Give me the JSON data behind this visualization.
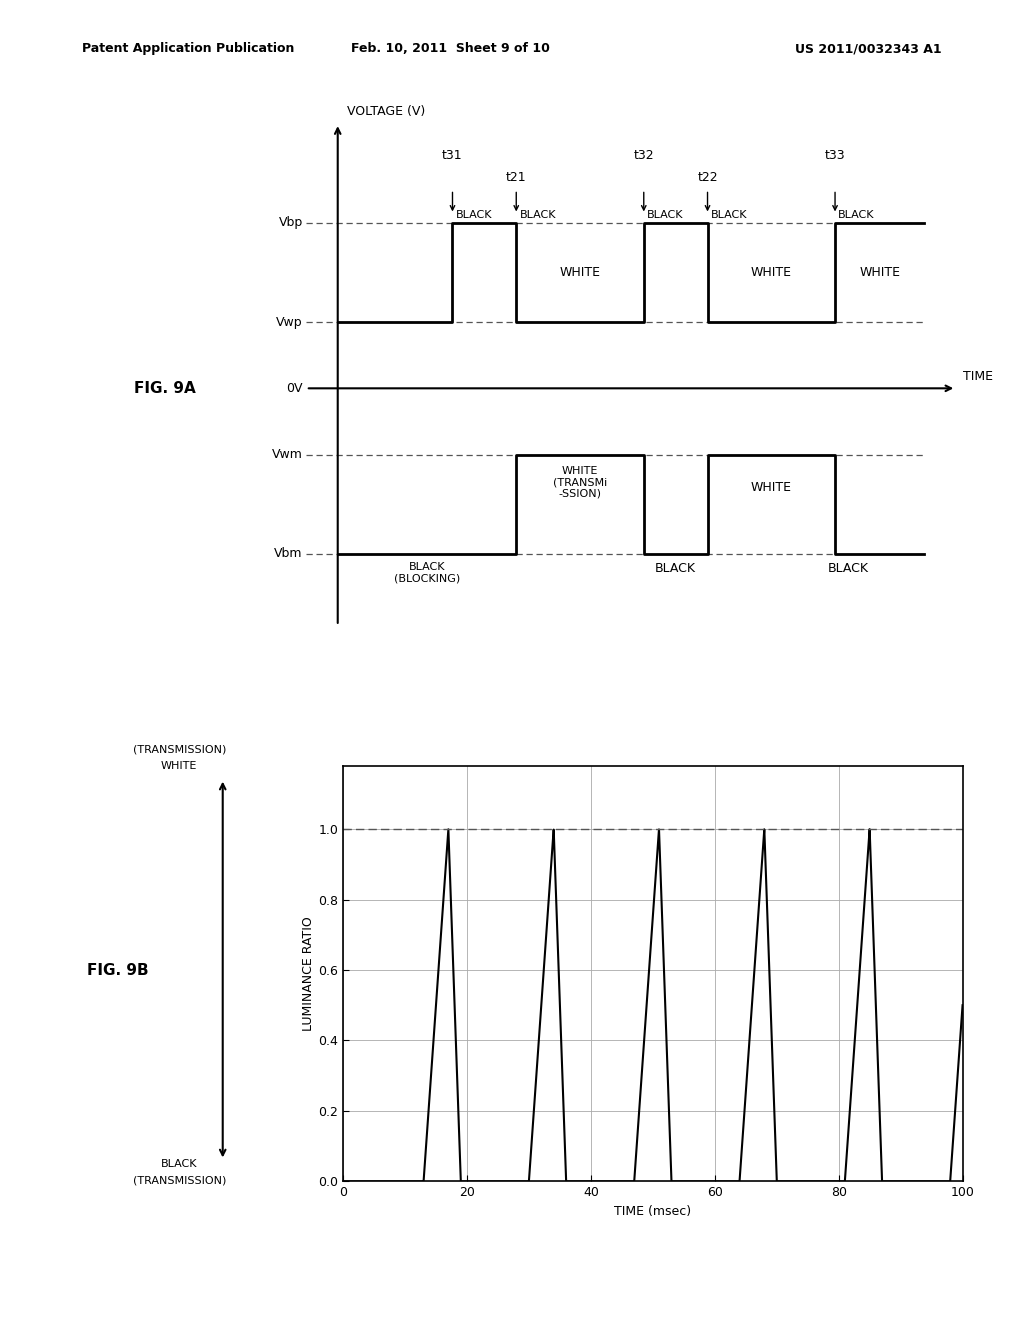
{
  "header_left": "Patent Application Publication",
  "header_center": "Feb. 10, 2011  Sheet 9 of 10",
  "header_right": "US 2011/0032343 A1",
  "fig9a_label": "FIG. 9A",
  "fig9b_label": "FIG. 9B",
  "fig9a_ylabel": "VOLTAGE (V)",
  "fig9a_xlabel": "TIME",
  "fig9b_ylabel": "LUMINANCE RATIO",
  "fig9b_xlabel": "TIME (msec)",
  "fig9b_ytop_label1": "(TRANSMISSION)",
  "fig9b_ytop_label2": "WHITE",
  "fig9b_ybot_label1": "BLACK",
  "fig9b_ybot_label2": "(TRANSMISSION)",
  "bg_color": "#ffffff",
  "line_color": "#000000",
  "dashed_color": "#555555",
  "grid_color": "#aaaaaa"
}
